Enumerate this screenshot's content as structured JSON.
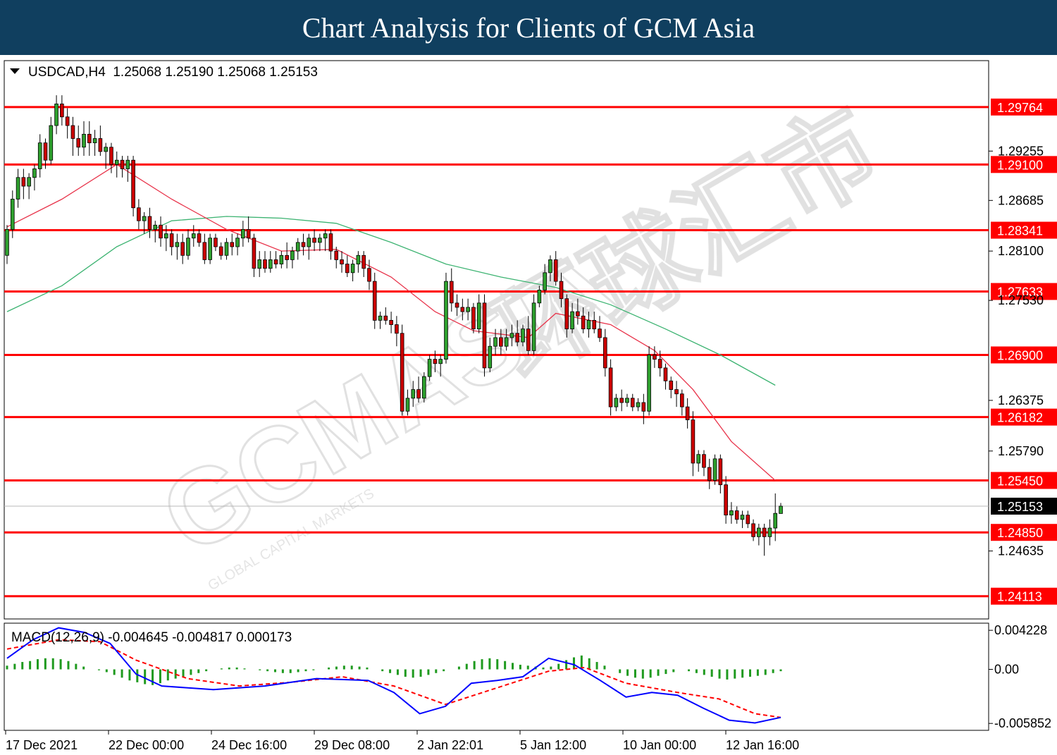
{
  "banner": {
    "title": "Chart Analysis for Clients of GCM Asia",
    "color": "#103f5f"
  },
  "watermark": {
    "brand": "GCMASIA",
    "tagline": "GLOBAL CAPITAL MARKETS",
    "cjk": "环球汇市"
  },
  "chart_data": {
    "type": "candlestick",
    "symbol_header": "USDCAD,H4  1.25068 1.25190 1.25068 1.25153",
    "symbol": "USDCAD",
    "timeframe": "H4",
    "last_bar": {
      "open": 1.25068,
      "high": 1.2519,
      "low": 1.25068,
      "close": 1.25153
    },
    "current_price_label": "1.25153",
    "ylim": [
      1.2385,
      1.303
    ],
    "y_ticks": [
      "1.29255",
      "1.28685",
      "1.28100",
      "1.27530",
      "1.26375",
      "1.25790",
      "1.24635"
    ],
    "x_ticks": [
      "17 Dec 2021",
      "22 Dec 00:00",
      "24 Dec 16:00",
      "29 Dec 08:00",
      "2 Jan 22:01",
      "5 Jan 12:00",
      "10 Jan 00:00",
      "12 Jan 16:00"
    ],
    "levels": [
      {
        "label": "1.29764",
        "value": 1.29764
      },
      {
        "label": "1.29100",
        "value": 1.291
      },
      {
        "label": "1.28341",
        "value": 1.28341
      },
      {
        "label": "1.27633",
        "value": 1.27633
      },
      {
        "label": "1.26900",
        "value": 1.269
      },
      {
        "label": "1.26182",
        "value": 1.26182
      },
      {
        "label": "1.25450",
        "value": 1.2545
      },
      {
        "label": "1.24850",
        "value": 1.2485
      },
      {
        "label": "1.24113",
        "value": 1.24113
      }
    ],
    "candles": [
      [
        1.2805,
        1.284,
        1.2795,
        1.2835
      ],
      [
        1.2835,
        1.288,
        1.2825,
        1.287
      ],
      [
        1.287,
        1.2905,
        1.286,
        1.2895
      ],
      [
        1.2895,
        1.2905,
        1.287,
        1.2885
      ],
      [
        1.2885,
        1.29,
        1.287,
        1.2895
      ],
      [
        1.2895,
        1.291,
        1.288,
        1.2905
      ],
      [
        1.2905,
        1.2945,
        1.2895,
        1.2935
      ],
      [
        1.2935,
        1.294,
        1.2905,
        1.2915
      ],
      [
        1.2915,
        1.2965,
        1.291,
        1.2955
      ],
      [
        1.2955,
        1.299,
        1.2945,
        1.298
      ],
      [
        1.298,
        1.299,
        1.2955,
        1.2965
      ],
      [
        1.2965,
        1.2975,
        1.294,
        1.2955
      ],
      [
        1.2955,
        1.2965,
        1.292,
        1.294
      ],
      [
        1.294,
        1.2955,
        1.292,
        1.293
      ],
      [
        1.293,
        1.296,
        1.292,
        1.2945
      ],
      [
        1.2945,
        1.296,
        1.292,
        1.2935
      ],
      [
        1.2935,
        1.295,
        1.292,
        1.294
      ],
      [
        1.294,
        1.2955,
        1.292,
        1.2925
      ],
      [
        1.2925,
        1.2935,
        1.2905,
        1.293
      ],
      [
        1.293,
        1.2935,
        1.29,
        1.291
      ],
      [
        1.291,
        1.2925,
        1.2895,
        1.2915
      ],
      [
        1.2915,
        1.292,
        1.2895,
        1.2905
      ],
      [
        1.2905,
        1.292,
        1.289,
        1.2915
      ],
      [
        1.2915,
        1.292,
        1.285,
        1.286
      ],
      [
        1.286,
        1.287,
        1.2835,
        1.2845
      ],
      [
        1.2845,
        1.2855,
        1.283,
        1.285
      ],
      [
        1.285,
        1.286,
        1.2825,
        1.2835
      ],
      [
        1.2835,
        1.2845,
        1.282,
        1.284
      ],
      [
        1.284,
        1.285,
        1.2815,
        1.2825
      ],
      [
        1.2825,
        1.284,
        1.281,
        1.283
      ],
      [
        1.283,
        1.2835,
        1.2805,
        1.2815
      ],
      [
        1.2815,
        1.283,
        1.28,
        1.282
      ],
      [
        1.282,
        1.283,
        1.2795,
        1.2805
      ],
      [
        1.2805,
        1.2835,
        1.28,
        1.2825
      ],
      [
        1.2825,
        1.284,
        1.2815,
        1.283
      ],
      [
        1.283,
        1.2835,
        1.2815,
        1.282
      ],
      [
        1.282,
        1.283,
        1.2795,
        1.28
      ],
      [
        1.28,
        1.283,
        1.2795,
        1.2825
      ],
      [
        1.2825,
        1.283,
        1.281,
        1.2815
      ],
      [
        1.2815,
        1.282,
        1.28,
        1.2805
      ],
      [
        1.2805,
        1.2825,
        1.28,
        1.282
      ],
      [
        1.282,
        1.283,
        1.2805,
        1.2815
      ],
      [
        1.2815,
        1.283,
        1.2805,
        1.2825
      ],
      [
        1.2825,
        1.2845,
        1.2815,
        1.2835
      ],
      [
        1.2835,
        1.285,
        1.282,
        1.2825
      ],
      [
        1.2825,
        1.283,
        1.278,
        1.279
      ],
      [
        1.279,
        1.281,
        1.278,
        1.28
      ],
      [
        1.28,
        1.281,
        1.2785,
        1.279
      ],
      [
        1.279,
        1.281,
        1.2785,
        1.28
      ],
      [
        1.28,
        1.281,
        1.279,
        1.2795
      ],
      [
        1.2795,
        1.281,
        1.279,
        1.2805
      ],
      [
        1.2805,
        1.282,
        1.279,
        1.28
      ],
      [
        1.28,
        1.2815,
        1.279,
        1.281
      ],
      [
        1.281,
        1.2825,
        1.28,
        1.282
      ],
      [
        1.282,
        1.283,
        1.2805,
        1.2815
      ],
      [
        1.2815,
        1.283,
        1.28,
        1.2825
      ],
      [
        1.2825,
        1.2835,
        1.281,
        1.282
      ],
      [
        1.282,
        1.283,
        1.281,
        1.2825
      ],
      [
        1.2825,
        1.2835,
        1.281,
        1.283
      ],
      [
        1.283,
        1.2835,
        1.28,
        1.281
      ],
      [
        1.281,
        1.2815,
        1.279,
        1.28
      ],
      [
        1.28,
        1.281,
        1.2785,
        1.2795
      ],
      [
        1.2795,
        1.2805,
        1.278,
        1.2785
      ],
      [
        1.2785,
        1.28,
        1.2775,
        1.2795
      ],
      [
        1.2795,
        1.281,
        1.2785,
        1.2805
      ],
      [
        1.2805,
        1.281,
        1.278,
        1.279
      ],
      [
        1.279,
        1.28,
        1.2765,
        1.2775
      ],
      [
        1.2775,
        1.2785,
        1.272,
        1.273
      ],
      [
        1.273,
        1.274,
        1.272,
        1.2735
      ],
      [
        1.2735,
        1.2745,
        1.2725,
        1.273
      ],
      [
        1.273,
        1.274,
        1.2715,
        1.2725
      ],
      [
        1.2725,
        1.2735,
        1.27,
        1.2715
      ],
      [
        1.2715,
        1.2725,
        1.262,
        1.2625
      ],
      [
        1.2625,
        1.265,
        1.262,
        1.264
      ],
      [
        1.264,
        1.266,
        1.263,
        1.265
      ],
      [
        1.265,
        1.2665,
        1.2635,
        1.264
      ],
      [
        1.264,
        1.267,
        1.2635,
        1.2665
      ],
      [
        1.2665,
        1.269,
        1.266,
        1.2685
      ],
      [
        1.2685,
        1.2695,
        1.267,
        1.268
      ],
      [
        1.268,
        1.269,
        1.2665,
        1.2685
      ],
      [
        1.2685,
        1.2785,
        1.268,
        1.2775
      ],
      [
        1.2775,
        1.279,
        1.274,
        1.275
      ],
      [
        1.275,
        1.276,
        1.2735,
        1.2745
      ],
      [
        1.2745,
        1.2755,
        1.273,
        1.274
      ],
      [
        1.274,
        1.2755,
        1.273,
        1.2745
      ],
      [
        1.2745,
        1.275,
        1.2715,
        1.272
      ],
      [
        1.272,
        1.276,
        1.2715,
        1.275
      ],
      [
        1.275,
        1.276,
        1.2665,
        1.2675
      ],
      [
        1.2675,
        1.271,
        1.267,
        1.27
      ],
      [
        1.27,
        1.272,
        1.269,
        1.271
      ],
      [
        1.271,
        1.272,
        1.269,
        1.27
      ],
      [
        1.27,
        1.272,
        1.2695,
        1.271
      ],
      [
        1.271,
        1.2725,
        1.27,
        1.2715
      ],
      [
        1.2715,
        1.273,
        1.27,
        1.2705
      ],
      [
        1.2705,
        1.2725,
        1.27,
        1.272
      ],
      [
        1.272,
        1.2735,
        1.269,
        1.2695
      ],
      [
        1.2695,
        1.276,
        1.269,
        1.275
      ],
      [
        1.275,
        1.277,
        1.2745,
        1.2765
      ],
      [
        1.2765,
        1.2795,
        1.276,
        1.2785
      ],
      [
        1.2785,
        1.2805,
        1.2775,
        1.28
      ],
      [
        1.28,
        1.281,
        1.277,
        1.2775
      ],
      [
        1.2775,
        1.2785,
        1.2745,
        1.2755
      ],
      [
        1.2755,
        1.276,
        1.271,
        1.272
      ],
      [
        1.272,
        1.275,
        1.2715,
        1.274
      ],
      [
        1.274,
        1.2755,
        1.2725,
        1.2735
      ],
      [
        1.2735,
        1.2745,
        1.2715,
        1.272
      ],
      [
        1.272,
        1.274,
        1.271,
        1.273
      ],
      [
        1.273,
        1.274,
        1.2715,
        1.272
      ],
      [
        1.272,
        1.2735,
        1.2705,
        1.271
      ],
      [
        1.271,
        1.272,
        1.2665,
        1.2675
      ],
      [
        1.2675,
        1.2685,
        1.262,
        1.263
      ],
      [
        1.263,
        1.2645,
        1.2625,
        1.264
      ],
      [
        1.264,
        1.265,
        1.2625,
        1.2635
      ],
      [
        1.2635,
        1.2645,
        1.263,
        1.264
      ],
      [
        1.264,
        1.2645,
        1.2625,
        1.263
      ],
      [
        1.263,
        1.264,
        1.2625,
        1.2635
      ],
      [
        1.2635,
        1.2645,
        1.261,
        1.2625
      ],
      [
        1.2625,
        1.27,
        1.262,
        1.269
      ],
      [
        1.269,
        1.27,
        1.2675,
        1.2685
      ],
      [
        1.2685,
        1.2695,
        1.2665,
        1.2675
      ],
      [
        1.2675,
        1.268,
        1.265,
        1.266
      ],
      [
        1.266,
        1.2665,
        1.264,
        1.265
      ],
      [
        1.265,
        1.266,
        1.263,
        1.2645
      ],
      [
        1.2645,
        1.265,
        1.262,
        1.263
      ],
      [
        1.263,
        1.264,
        1.2605,
        1.2615
      ],
      [
        1.2615,
        1.2625,
        1.255,
        1.2565
      ],
      [
        1.2565,
        1.258,
        1.2555,
        1.2575
      ],
      [
        1.2575,
        1.258,
        1.255,
        1.256
      ],
      [
        1.256,
        1.257,
        1.2535,
        1.2545
      ],
      [
        1.2545,
        1.2575,
        1.254,
        1.257
      ],
      [
        1.257,
        1.2575,
        1.253,
        1.254
      ],
      [
        1.254,
        1.255,
        1.2495,
        1.2505
      ],
      [
        1.2505,
        1.252,
        1.2495,
        1.251
      ],
      [
        1.251,
        1.2515,
        1.2495,
        1.25
      ],
      [
        1.25,
        1.251,
        1.249,
        1.2505
      ],
      [
        1.2505,
        1.251,
        1.249,
        1.2495
      ],
      [
        1.2495,
        1.25,
        1.2475,
        1.248
      ],
      [
        1.248,
        1.2495,
        1.247,
        1.249
      ],
      [
        1.249,
        1.2495,
        1.2458,
        1.248
      ],
      [
        1.248,
        1.25,
        1.247,
        1.249
      ],
      [
        1.249,
        1.253,
        1.2475,
        1.2507
      ],
      [
        1.25068,
        1.2519,
        1.25068,
        1.25153
      ]
    ],
    "ma_red": [
      [
        0,
        1.2838
      ],
      [
        10,
        1.287
      ],
      [
        20,
        1.291
      ],
      [
        30,
        1.287
      ],
      [
        40,
        1.2835
      ],
      [
        50,
        1.281
      ],
      [
        60,
        1.2812
      ],
      [
        70,
        1.278
      ],
      [
        78,
        1.274
      ],
      [
        85,
        1.2718
      ],
      [
        95,
        1.271
      ],
      [
        100,
        1.2738
      ],
      [
        110,
        1.2725
      ],
      [
        118,
        1.2695
      ],
      [
        125,
        1.265
      ],
      [
        132,
        1.259
      ],
      [
        140,
        1.2545
      ]
    ],
    "ma_green": [
      [
        0,
        1.274
      ],
      [
        10,
        1.277
      ],
      [
        20,
        1.2815
      ],
      [
        30,
        1.2845
      ],
      [
        40,
        1.285
      ],
      [
        50,
        1.2848
      ],
      [
        60,
        1.2842
      ],
      [
        70,
        1.282
      ],
      [
        80,
        1.2795
      ],
      [
        90,
        1.278
      ],
      [
        100,
        1.2768
      ],
      [
        110,
        1.2748
      ],
      [
        120,
        1.272
      ],
      [
        130,
        1.269
      ],
      [
        140,
        1.2655
      ]
    ],
    "macd": {
      "label": "MACD(12,26,9) -0.004645 -0.004817 0.000173",
      "y_ticks": [
        "0.004228",
        "0.00",
        "-0.005852"
      ],
      "ylim": [
        -0.0066,
        0.005
      ],
      "histogram": [
        0.0004,
        0.0006,
        0.0008,
        0.0009,
        0.0011,
        0.0012,
        0.0012,
        0.0011,
        0.0009,
        0.0006,
        0.0003,
        0.0,
        -0.0001,
        -0.0003,
        -0.0006,
        -0.0009,
        -0.0012,
        -0.0014,
        -0.0016,
        -0.0017,
        -0.0015,
        -0.0012,
        -0.001,
        -0.0008,
        -0.0006,
        -0.0004,
        -0.0002,
        0.0,
        0.0001,
        0.0002,
        0.0002,
        0.0001,
        0.0,
        -0.0001,
        -0.0002,
        -0.0003,
        -0.0004,
        -0.0004,
        -0.0003,
        -0.0002,
        -0.0001,
        0.0,
        0.0002,
        0.0003,
        0.0004,
        0.0004,
        0.0003,
        0.0002,
        0.0,
        -0.0002,
        -0.0004,
        -0.0006,
        -0.0008,
        -0.0009,
        -0.0008,
        -0.0006,
        -0.0004,
        -0.0002,
        0.0,
        0.0003,
        0.0006,
        0.0009,
        0.0011,
        0.0012,
        0.0011,
        0.0009,
        0.0007,
        0.0005,
        0.0004,
        0.0003,
        0.0002,
        0.0003,
        0.0006,
        0.001,
        0.0013,
        0.0015,
        0.0012,
        0.0008,
        0.0004,
        0.0,
        -0.0004,
        -0.0007,
        -0.0009,
        -0.001,
        -0.0009,
        -0.0007,
        -0.0005,
        -0.0003,
        0.0,
        -0.0002,
        -0.0004,
        -0.0006,
        -0.0008,
        -0.001,
        -0.0011,
        -0.001,
        -0.0009,
        -0.0008,
        -0.0007,
        -0.0006,
        -0.0004,
        -0.0002
      ],
      "macd_line": [
        [
          0,
          0.0012
        ],
        [
          5,
          0.0032
        ],
        [
          10,
          0.0045
        ],
        [
          15,
          0.004
        ],
        [
          20,
          0.0028
        ],
        [
          25,
          -0.0005
        ],
        [
          30,
          -0.0018
        ],
        [
          40,
          -0.0022
        ],
        [
          50,
          -0.0018
        ],
        [
          60,
          -0.001
        ],
        [
          70,
          -0.0012
        ],
        [
          75,
          -0.0025
        ],
        [
          80,
          -0.0048
        ],
        [
          85,
          -0.004
        ],
        [
          90,
          -0.0015
        ],
        [
          95,
          -0.0012
        ],
        [
          100,
          -0.0008
        ],
        [
          105,
          0.0012
        ],
        [
          110,
          0.0005
        ],
        [
          115,
          -0.0012
        ],
        [
          120,
          -0.003
        ],
        [
          125,
          -0.0025
        ],
        [
          130,
          -0.0028
        ],
        [
          135,
          -0.0042
        ],
        [
          140,
          -0.0055
        ],
        [
          145,
          -0.0058
        ],
        [
          150,
          -0.0052
        ]
      ],
      "signal_line": [
        [
          0,
          0.0022
        ],
        [
          10,
          0.0032
        ],
        [
          18,
          0.003
        ],
        [
          25,
          0.001
        ],
        [
          35,
          -0.001
        ],
        [
          45,
          -0.0018
        ],
        [
          55,
          -0.0014
        ],
        [
          65,
          -0.0008
        ],
        [
          75,
          -0.0018
        ],
        [
          85,
          -0.0038
        ],
        [
          95,
          -0.002
        ],
        [
          105,
          -0.0002
        ],
        [
          112,
          0.0002
        ],
        [
          120,
          -0.0015
        ],
        [
          130,
          -0.0025
        ],
        [
          138,
          -0.0032
        ],
        [
          145,
          -0.0048
        ],
        [
          150,
          -0.0052
        ]
      ]
    }
  }
}
